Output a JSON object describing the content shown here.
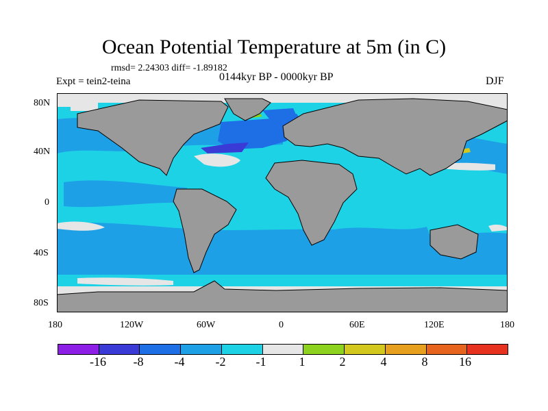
{
  "title": "Ocean Potential Temperature at 5m (in C)",
  "stats": "rmsd= 2.24303 diff= -1.89182",
  "experiment": "Expt = tein2-teina",
  "period": "0144kyr BP - 0000kyr BP",
  "season": "DJF",
  "lat_ticks": [
    "80N",
    "40N",
    "0",
    "40S",
    "80S"
  ],
  "lon_ticks": [
    "180",
    "120W",
    "60W",
    "0",
    "60E",
    "120E",
    "180"
  ],
  "colorbar": {
    "colors": [
      "#8c1ee6",
      "#3a3ad6",
      "#1e6ee6",
      "#1ea0e6",
      "#1ed2e6",
      "#e6e6e6",
      "#8cd21e",
      "#d2c81e",
      "#e6a01e",
      "#e6641e",
      "#e6321e"
    ],
    "labels": [
      "-16",
      "-8",
      "-4",
      "-2",
      "-1",
      "1",
      "2",
      "4",
      "8",
      "16"
    ]
  },
  "map_colors": {
    "land": "#9a9a9a",
    "ocean_base": "#1ed2e6",
    "ocean_mid": "#1ea0e6",
    "ocean_deep": "#1e6ee6",
    "ocean_deepest": "#3a3ad6",
    "ice_neutral": "#e6e6e6",
    "warm_small": "#8cd21e",
    "warm_mid": "#d2c81e"
  }
}
